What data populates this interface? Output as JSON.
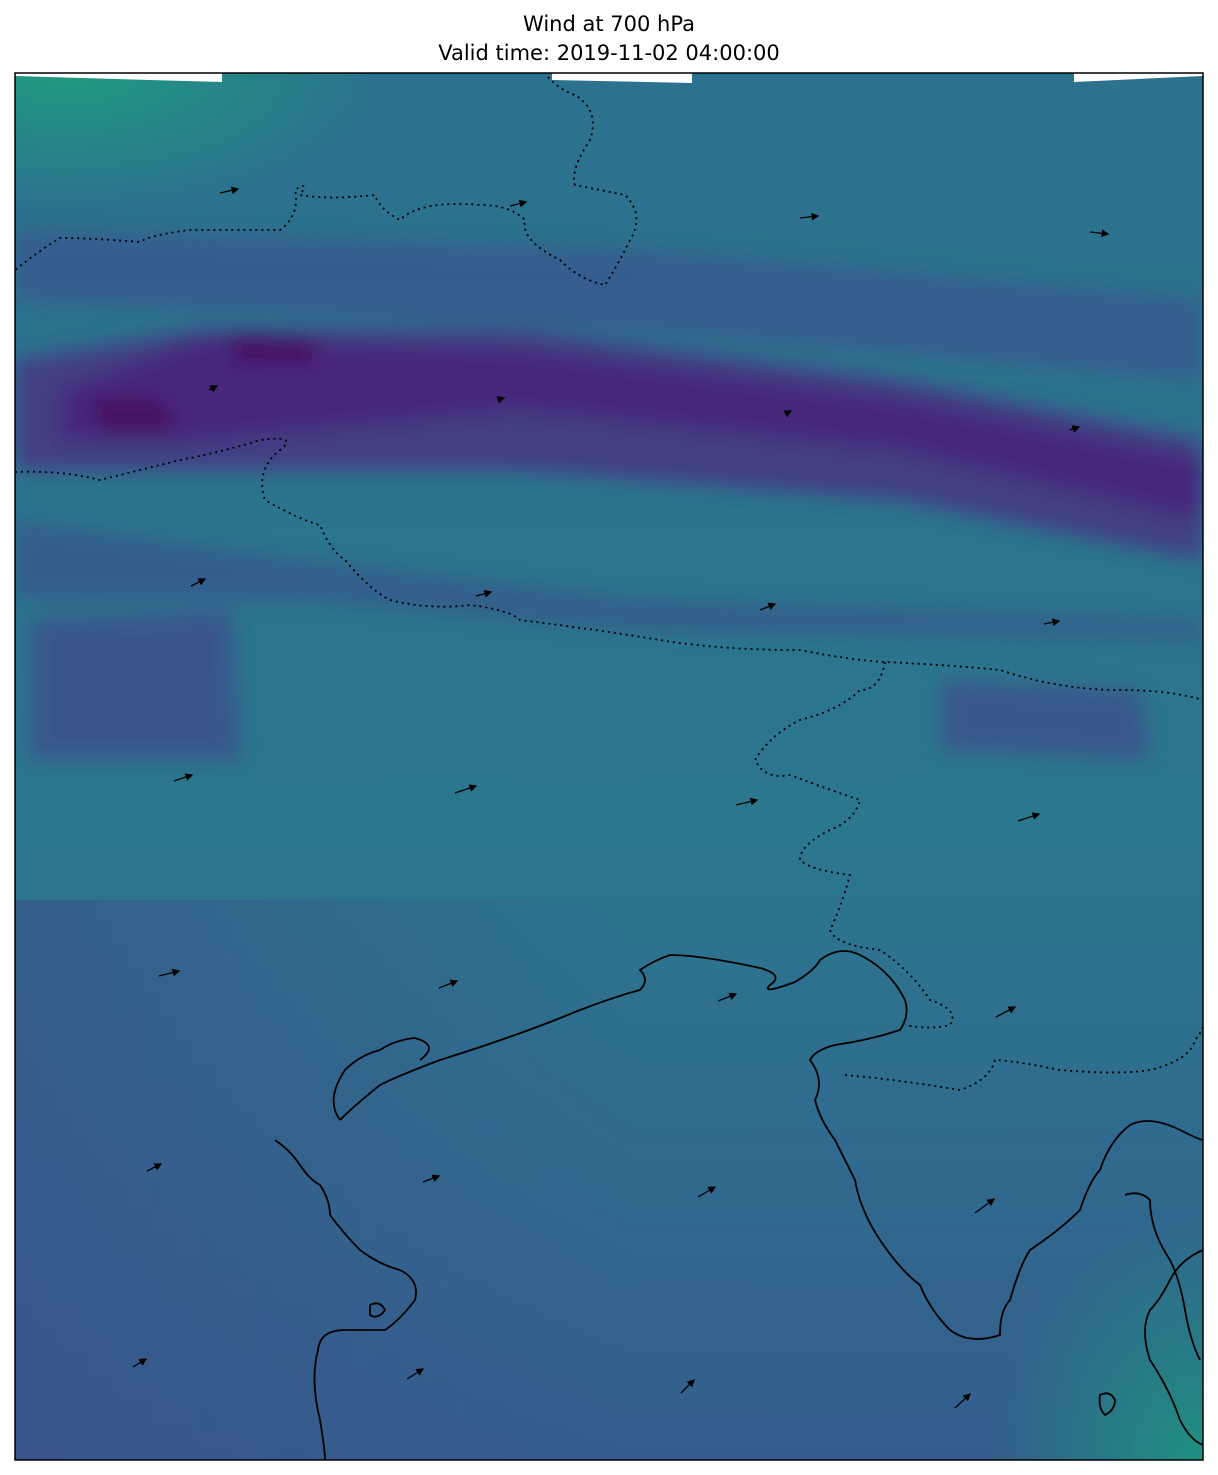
{
  "title": {
    "line1": "Wind at 700 hPa",
    "line2": "Valid time: 2019-11-02 04:00:00"
  },
  "colors": {
    "strong_purple": "#46155f",
    "band_purple": "#433b84",
    "mid_blue": "#3b5a8f",
    "teal": "#2c778c",
    "green_teal": "#1f9280",
    "coastline": "#000000",
    "border": "#000000",
    "arrow": "#000000"
  },
  "map": {
    "field": "wind speed",
    "colormap": "viridis",
    "overlays": [
      "coastline",
      "country-borders-dotted",
      "wind-vector-arrows"
    ]
  }
}
